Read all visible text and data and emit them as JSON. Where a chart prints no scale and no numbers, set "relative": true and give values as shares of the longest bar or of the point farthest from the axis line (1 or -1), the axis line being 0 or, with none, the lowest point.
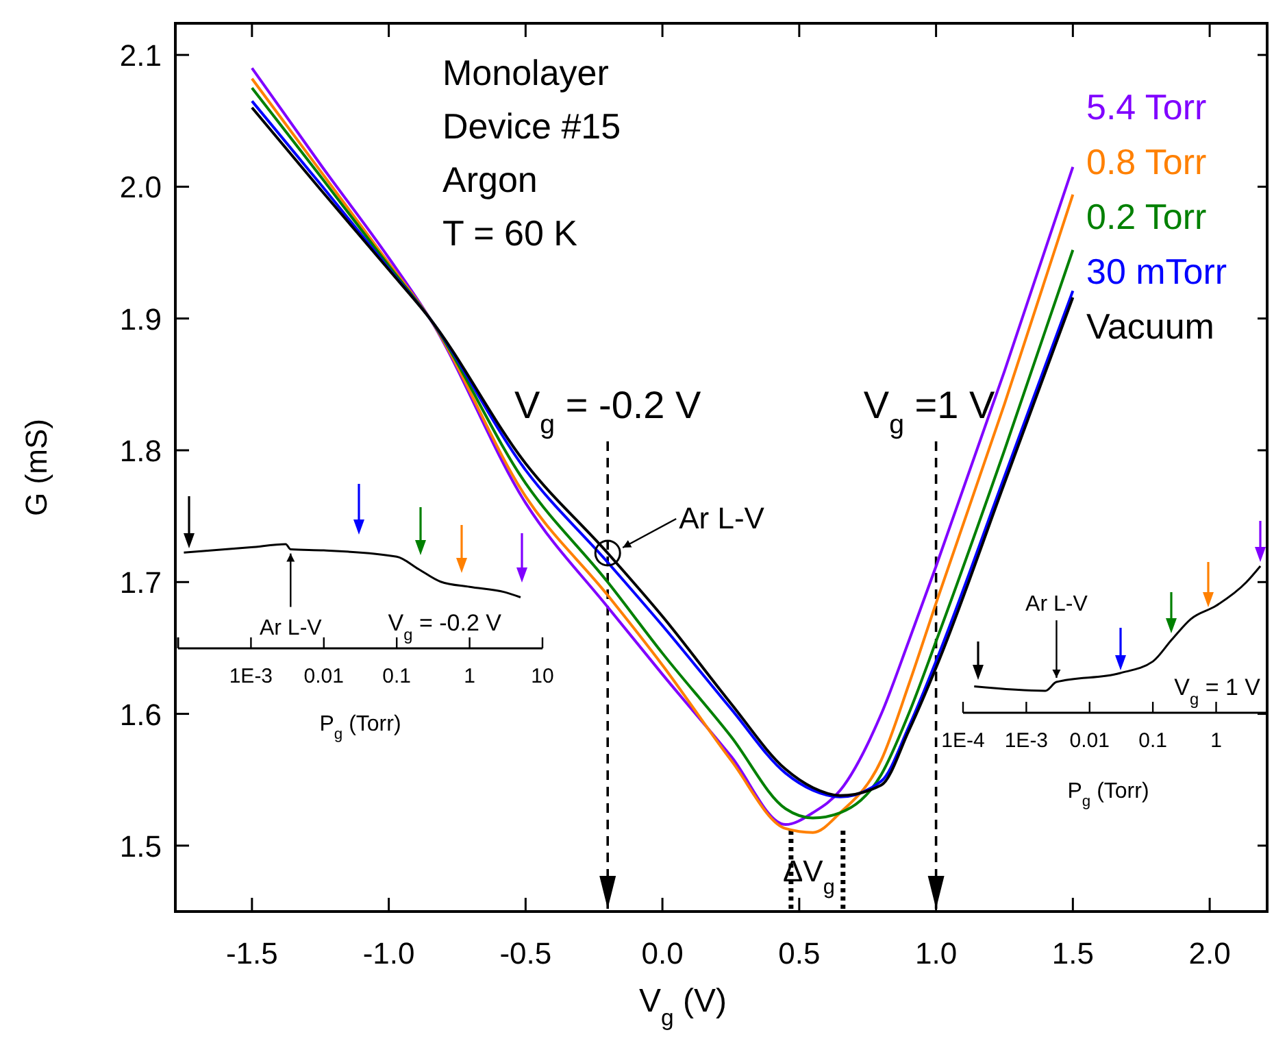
{
  "chart_data": [
    {
      "type": "line",
      "xlabel": "V$_{g}$ (V)",
      "ylabel": "G (mS)",
      "xlim": [
        -1.78,
        2.21
      ],
      "ylim": [
        1.45,
        2.124
      ],
      "xticks": [
        -1.5,
        {
          "value": -1,
          "label": "-1.0"
        },
        -0.5,
        {
          "value": 0,
          "label": "0.0"
        },
        0.5,
        {
          "value": 1,
          "label": "1.0"
        },
        1.5,
        {
          "value": 2,
          "label": "2.0"
        }
      ],
      "yticks": [
        1.5,
        1.6,
        1.7,
        1.8,
        1.9,
        {
          "value": 2,
          "label": "2.0"
        },
        2.1
      ],
      "x": [
        -1.5,
        -1.25,
        -1.0,
        -0.85,
        -0.5,
        -0.2,
        0,
        0.25,
        0.45,
        0.55,
        0.65,
        0.8,
        0.9,
        1.0,
        1.25,
        1.5
      ],
      "series": [
        {
          "name": "5.4 Torr",
          "color": "#8000ff",
          "values": [
            2.09,
            2.017,
            1.946,
            1.9,
            1.76,
            1.681,
            1.63,
            1.568,
            1.516,
            1.525,
            1.542,
            1.6,
            1.655,
            1.712,
            1.86,
            2.015
          ]
        },
        {
          "name": "0.8 Torr",
          "color": "#ff8000",
          "values": [
            2.082,
            2.012,
            1.942,
            1.9,
            1.765,
            1.69,
            1.637,
            1.565,
            1.513,
            1.51,
            1.525,
            1.565,
            1.622,
            1.684,
            1.835,
            1.994
          ]
        },
        {
          "name": "0.2 Torr",
          "color": "#008000",
          "values": [
            2.075,
            2.008,
            1.94,
            1.9,
            1.775,
            1.7,
            1.646,
            1.583,
            1.528,
            1.521,
            1.525,
            1.554,
            1.6,
            1.655,
            1.8,
            1.952
          ]
        },
        {
          "name": "30 mTorr",
          "color": "#0000ff",
          "values": [
            2.065,
            2.002,
            1.938,
            1.9,
            1.785,
            1.715,
            1.667,
            1.604,
            1.555,
            1.542,
            1.537,
            1.549,
            1.59,
            1.64,
            1.78,
            1.921
          ]
        },
        {
          "name": "Vacuum",
          "color": "#000000",
          "values": [
            2.06,
            1.998,
            1.937,
            1.9,
            1.79,
            1.722,
            1.674,
            1.608,
            1.558,
            1.544,
            1.538,
            1.546,
            1.587,
            1.635,
            1.775,
            1.916
          ]
        }
      ],
      "legend": "top right",
      "grid": false,
      "line_style": "solid",
      "ref_lines": [
        {
          "axis": "x",
          "value": -0.2,
          "label": "V$_{g}$ = -0.2 V",
          "line_style": "dashed"
        },
        {
          "axis": "x",
          "value": 1,
          "label": "V$_{g}$ =1 V",
          "line_style": "dashed"
        },
        {
          "axis": "x",
          "value": 0.47,
          "line_style": "dotted"
        },
        {
          "axis": "x",
          "value": 0.66,
          "line_style": "dotted"
        }
      ],
      "annotations": [
        "Monolayer",
        "Device #15",
        "Argon",
        "T = 60 K",
        {
          "text": "Ar L-V",
          "x": -0.2,
          "y": 1.722
        },
        "ΔV$_{g}$"
      ]
    },
    {
      "type": "line",
      "relative": true,
      "log": "x",
      "xlabel": "P$_{g}$ (Torr)",
      "xlim": [
        0.0001,
        10
      ],
      "xticks": [
        {
          "value": 0.001,
          "label": "1E-3"
        },
        0.01,
        0.1,
        1,
        10
      ],
      "tick_labels": "x",
      "x": [
        0.00012,
        0.001,
        0.003,
        0.0035,
        0.01,
        0.1,
        0.2,
        0.4,
        1,
        3,
        5
      ],
      "series": [
        {
          "color": "#000000",
          "values": [
            0.92,
            0.97,
            1,
            0.95,
            0.94,
            0.88,
            0.76,
            0.64,
            0.59,
            0.54,
            0.49
          ]
        }
      ],
      "annotations": [
        {
          "text": "Ar L-V",
          "x": 0.0035,
          "y": 0.95
        },
        "V$_{g}$ = -0.2 V"
      ]
    },
    {
      "type": "line",
      "relative": true,
      "log": "x",
      "xlabel": "P$_{g}$ (Torr)",
      "xlim": [
        0.0001,
        6.4
      ],
      "xticks": [
        {
          "value": 0.0001,
          "label": "1E-4"
        },
        {
          "value": 0.001,
          "label": "1E-3"
        },
        0.01,
        0.1,
        1
      ],
      "tick_labels": "x",
      "x": [
        0.00015,
        0.002,
        0.003,
        0.03,
        0.1,
        0.2,
        0.4,
        1,
        3,
        5
      ],
      "series": [
        {
          "color": "#000000",
          "values": [
            0.18,
            0.15,
            0.21,
            0.27,
            0.35,
            0.5,
            0.64,
            0.73,
            0.89,
            1
          ]
        }
      ],
      "annotations": [
        {
          "text": "Ar L-V",
          "x": 0.003,
          "y": 0.21
        },
        "V$_{g}$ = 1 V"
      ]
    }
  ]
}
